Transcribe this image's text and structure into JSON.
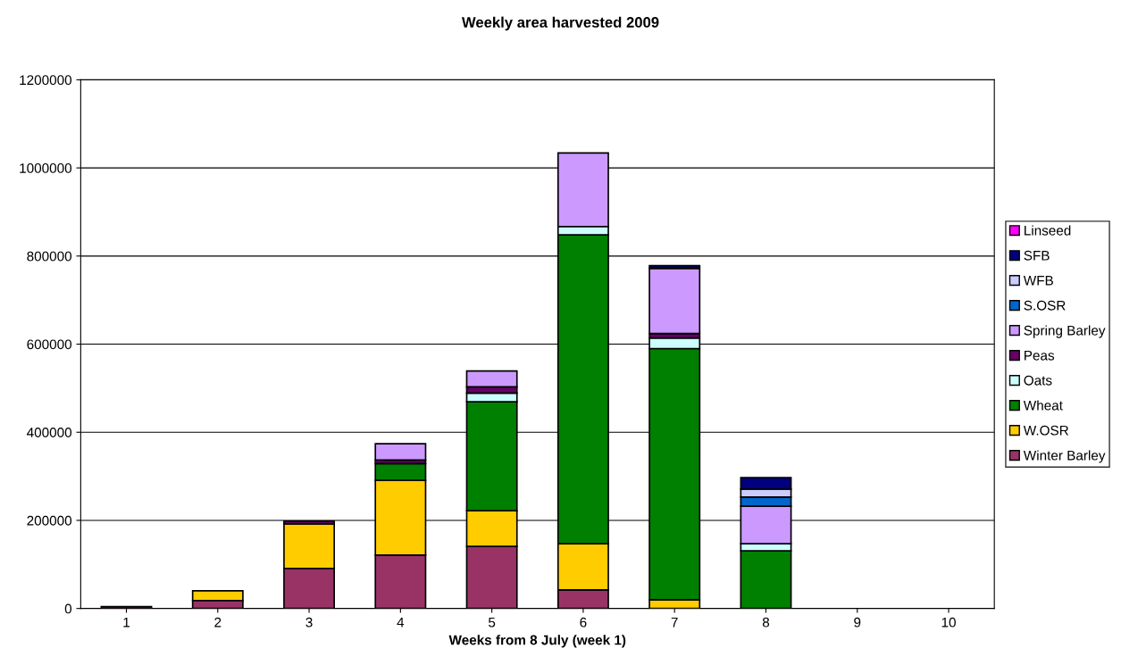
{
  "chart_data": {
    "type": "bar",
    "title": "Weekly area harvested 2009",
    "xlabel": "Weeks from 8 July (week 1)",
    "categories": [
      "1",
      "2",
      "3",
      "4",
      "5",
      "6",
      "7",
      "8",
      "9",
      "10"
    ],
    "stacked": true,
    "ylim": [
      0,
      1200000
    ],
    "yticks": [
      0,
      200000,
      400000,
      600000,
      800000,
      1000000,
      1200000
    ],
    "grid": "y",
    "legend": "right",
    "series": [
      {
        "name": "Winter Barley",
        "color": "#993366",
        "values": [
          4000,
          18000,
          91000,
          121000,
          141000,
          42000,
          null,
          null,
          null,
          null
        ]
      },
      {
        "name": "W.OSR",
        "color": "#ffcc00",
        "values": [
          null,
          22000,
          101000,
          170000,
          81000,
          105000,
          20000,
          null,
          null,
          null
        ]
      },
      {
        "name": "Wheat",
        "color": "#008000",
        "values": [
          null,
          null,
          null,
          38000,
          247000,
          701000,
          570000,
          131000,
          null,
          null
        ]
      },
      {
        "name": "Oats",
        "color": "#ccffff",
        "values": [
          null,
          null,
          null,
          null,
          20000,
          19000,
          24000,
          16000,
          null,
          null
        ]
      },
      {
        "name": "Peas",
        "color": "#660066",
        "values": [
          null,
          null,
          6000,
          8000,
          14000,
          null,
          10000,
          null,
          null,
          null
        ]
      },
      {
        "name": "Spring Barley",
        "color": "#cc99ff",
        "values": [
          null,
          null,
          null,
          37000,
          36000,
          167000,
          148000,
          85000,
          null,
          null
        ]
      },
      {
        "name": "S.OSR",
        "color": "#0066cc",
        "values": [
          null,
          null,
          null,
          null,
          null,
          null,
          null,
          21000,
          null,
          null
        ]
      },
      {
        "name": "WFB",
        "color": "#ccccff",
        "values": [
          null,
          null,
          null,
          null,
          null,
          null,
          null,
          18000,
          null,
          null
        ]
      },
      {
        "name": "SFB",
        "color": "#000080",
        "values": [
          null,
          null,
          null,
          null,
          null,
          null,
          6000,
          26000,
          null,
          null
        ]
      },
      {
        "name": "Linseed",
        "color": "#ff00ff",
        "values": [
          null,
          null,
          null,
          null,
          null,
          null,
          null,
          null,
          null,
          null
        ]
      }
    ]
  }
}
